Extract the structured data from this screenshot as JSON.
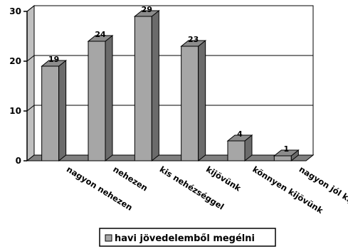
{
  "chart_data": {
    "type": "bar",
    "categories": [
      "nagyon nehezen",
      "nehezen",
      "kis nehézséggel",
      "kijövünk",
      "könnyen kijövünk",
      "nagyon jól kijövünk"
    ],
    "series": [
      {
        "name": "havi jövedelemből megélni",
        "values": [
          19,
          24,
          29,
          23,
          4,
          1
        ]
      }
    ],
    "ylim": [
      0,
      30
    ],
    "yticks": [
      0,
      10,
      20,
      30
    ],
    "grid": true,
    "legend": "bottom-center",
    "colors": {
      "bar_front": "#a6a6a6",
      "bar_side": "#6b6b6b",
      "bar_top": "#8c8c8c",
      "back_wall": "#ffffff",
      "side_wall": "#c0c0c0",
      "floor": "#808080"
    }
  }
}
